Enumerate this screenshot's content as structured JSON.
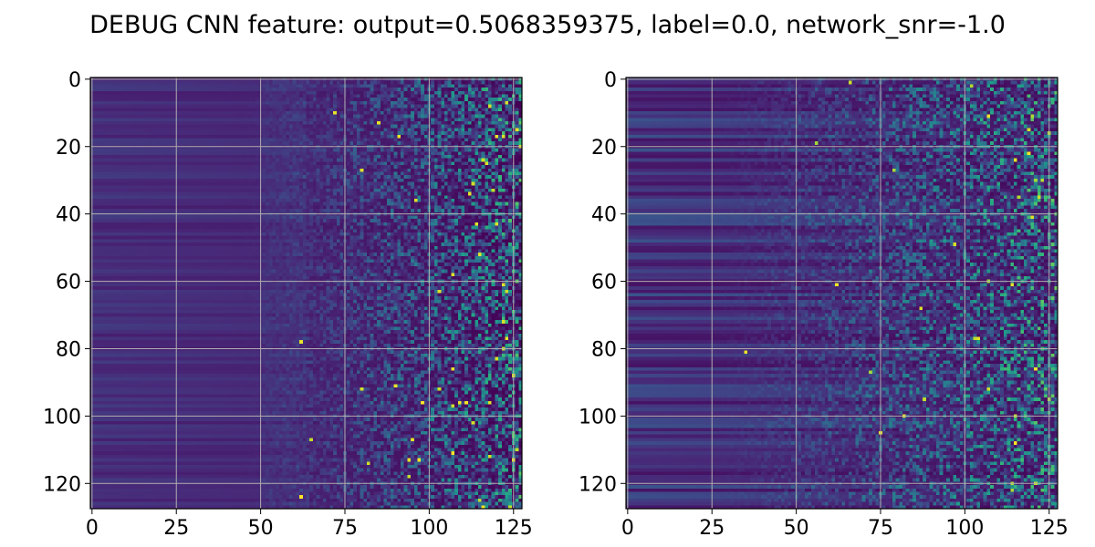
{
  "figure": {
    "title": "DEBUG CNN feature: output=0.5068359375, label=0.0, network_snr=-1.0"
  },
  "chart_data": [
    {
      "type": "heatmap",
      "title": "",
      "xlabel": "",
      "ylabel": "",
      "rows": 128,
      "cols": 128,
      "colormap": "viridis",
      "xlim": [
        -0.5,
        127.5
      ],
      "ylim": [
        127.5,
        -0.5
      ],
      "xticks": [
        0,
        25,
        50,
        75,
        100,
        125
      ],
      "yticks": [
        0,
        20,
        40,
        60,
        80,
        100,
        120
      ],
      "grid": true,
      "description_pattern": "low smooth values on left columns, increasingly noisy high values toward right columns"
    },
    {
      "type": "heatmap",
      "title": "",
      "xlabel": "",
      "ylabel": "",
      "rows": 128,
      "cols": 128,
      "colormap": "viridis",
      "xlim": [
        -0.5,
        127.5
      ],
      "ylim": [
        127.5,
        -0.5
      ],
      "xticks": [
        0,
        25,
        50,
        75,
        100,
        125
      ],
      "yticks": [
        0,
        20,
        40,
        60,
        80,
        100,
        120
      ],
      "grid": true,
      "description_pattern": "horizontal banding on left, noisy speckle toward right"
    }
  ],
  "colors": {
    "viridis": [
      "#440154",
      "#482878",
      "#3e4989",
      "#31688e",
      "#26828e",
      "#1f9e89",
      "#35b779",
      "#6ece58",
      "#b5de2b",
      "#fde725"
    ],
    "grid": "#b0b0b0",
    "axis": "#000000"
  }
}
